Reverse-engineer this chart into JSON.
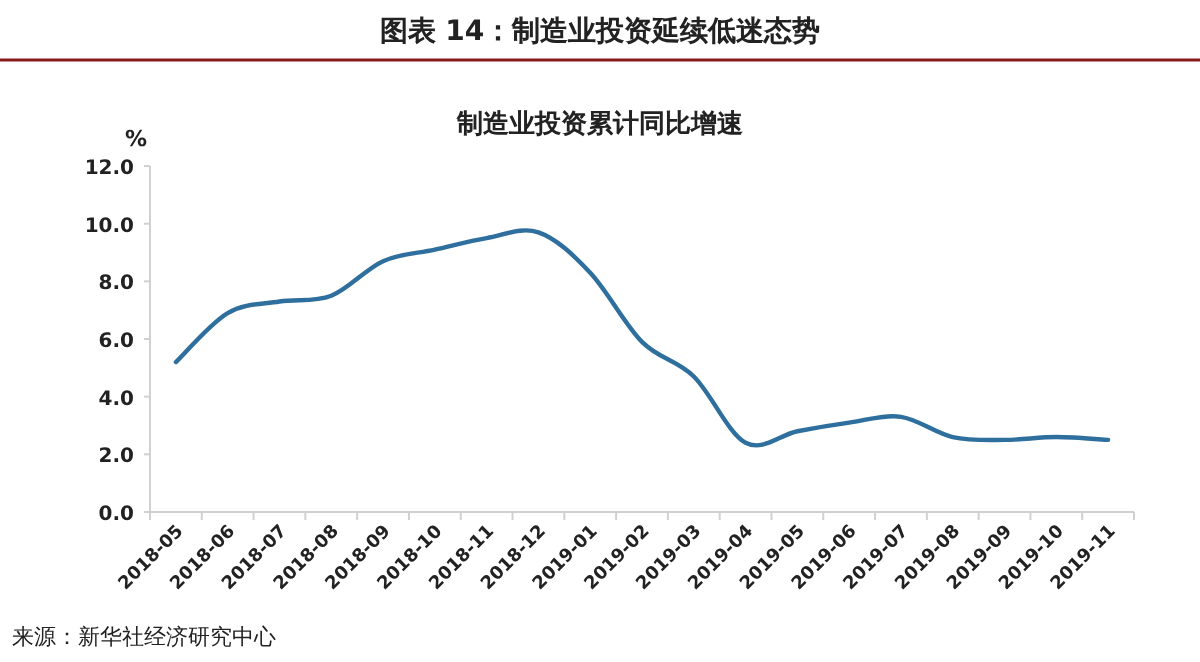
{
  "chart_data": {
    "type": "line",
    "title": "图表 14：制造业投资延续低迷态势",
    "subtitle": "制造业投资累计同比增速",
    "ylabel": "%",
    "categories": [
      "2018-05",
      "2018-06",
      "2018-07",
      "2018-08",
      "2018-09",
      "2018-10",
      "2018-11",
      "2018-12",
      "2019-01",
      "2019-02",
      "2019-03",
      "2019-04",
      "2019-05",
      "2019-06",
      "2019-07",
      "2019-08",
      "2019-09",
      "2019-10",
      "2019-11"
    ],
    "series": [
      {
        "color": "#2e6f9e",
        "values": [
          5.2,
          6.9,
          7.3,
          7.5,
          8.7,
          9.1,
          9.5,
          9.7,
          8.3,
          5.9,
          4.7,
          2.4,
          2.8,
          3.1,
          3.3,
          2.6,
          2.5,
          2.6,
          2.5
        ]
      }
    ],
    "ylim": [
      0,
      12
    ],
    "yticks": [
      {
        "value": 0,
        "label": "0.0"
      },
      {
        "value": 2,
        "label": "2.0"
      },
      {
        "value": 4,
        "label": "4.0"
      },
      {
        "value": 6,
        "label": "6.0"
      },
      {
        "value": 8,
        "label": "8.0"
      },
      {
        "value": 10,
        "label": "10.0"
      },
      {
        "value": 12,
        "label": "12.0"
      }
    ],
    "annotations": [
      "来源：新华社经济研究中心"
    ]
  }
}
